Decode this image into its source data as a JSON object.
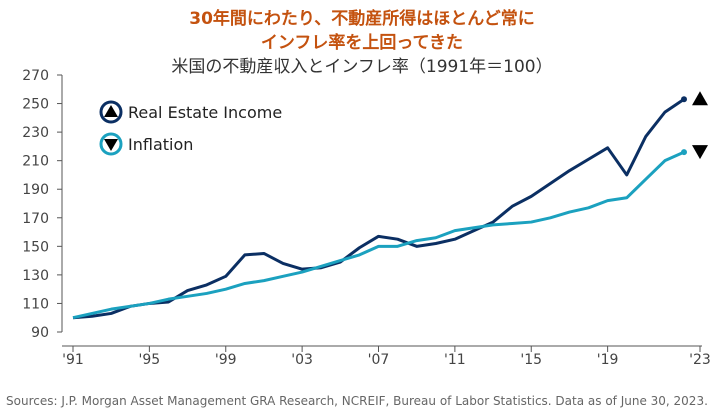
{
  "chart_data": {
    "type": "line",
    "title_line1": "30年間にわたり、不動産所得はほとんど常に",
    "title_line2": "インフレ率を上回ってきた",
    "subtitle": "米国の不動産収入とインフレ率（1991年＝100）",
    "xlabel": "",
    "ylabel": "",
    "x": [
      1991,
      1992,
      1993,
      1994,
      1995,
      1996,
      1997,
      1998,
      1999,
      2000,
      2001,
      2002,
      2003,
      2004,
      2005,
      2006,
      2007,
      2008,
      2009,
      2010,
      2011,
      2012,
      2013,
      2014,
      2015,
      2016,
      2017,
      2018,
      2019,
      2020,
      2021,
      2022,
      2023
    ],
    "xlim": [
      1991,
      2023
    ],
    "ylim": [
      90,
      270
    ],
    "y_ticks": [
      90,
      110,
      130,
      150,
      170,
      190,
      210,
      230,
      250,
      270
    ],
    "x_ticks": [
      {
        "value": 1991,
        "label": "'91"
      },
      {
        "value": 1995,
        "label": "'95"
      },
      {
        "value": 1999,
        "label": "'99"
      },
      {
        "value": 2003,
        "label": "'03"
      },
      {
        "value": 2007,
        "label": "'07"
      },
      {
        "value": 2011,
        "label": "'11"
      },
      {
        "value": 2015,
        "label": "'15"
      },
      {
        "value": 2019,
        "label": "'19"
      },
      {
        "value": 2023,
        "label": "'23"
      }
    ],
    "grid": false,
    "legend_position": "top-left",
    "series": [
      {
        "name": "Real Estate Income",
        "color": "#0b2f63",
        "marker": "triangle-up",
        "values": [
          100,
          101,
          103,
          108,
          110,
          111,
          119,
          123,
          129,
          144,
          145,
          138,
          134,
          135,
          139,
          149,
          157,
          155,
          150,
          152,
          155,
          161,
          167,
          178,
          185,
          194,
          203,
          211,
          219,
          200,
          227,
          244,
          253
        ]
      },
      {
        "name": "Inflation",
        "color": "#1ba1bf",
        "marker": "triangle-down",
        "values": [
          100,
          103,
          106,
          108,
          110,
          113,
          115,
          117,
          120,
          124,
          126,
          129,
          132,
          136,
          140,
          144,
          150,
          150,
          154,
          156,
          161,
          163,
          165,
          166,
          167,
          170,
          174,
          177,
          182,
          184,
          197,
          210,
          216
        ]
      }
    ]
  },
  "source": "Sources: J.P. Morgan Asset Management GRA Research, NCREIF, Bureau of Labor Statistics. Data as of June 30, 2023."
}
